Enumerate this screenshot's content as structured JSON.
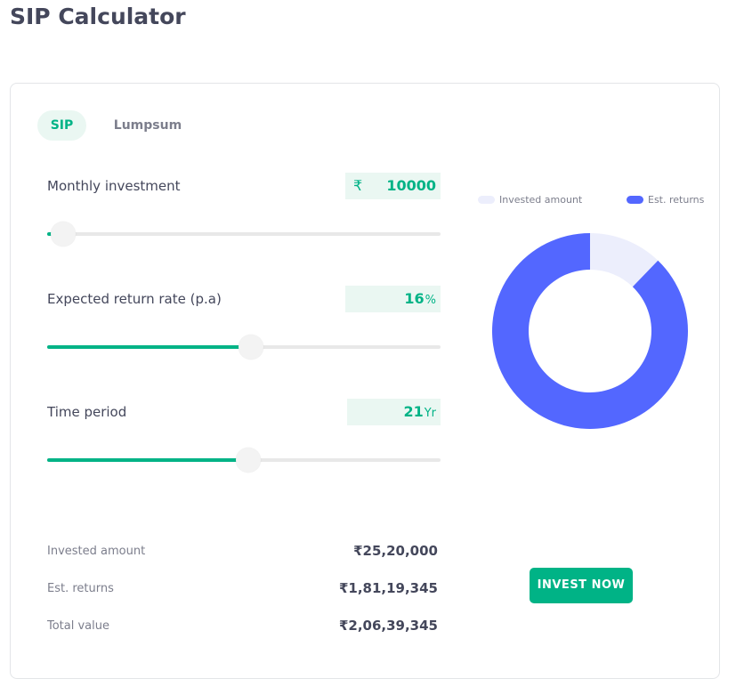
{
  "page": {
    "title": "SIP Calculator"
  },
  "tabs": [
    {
      "label": "SIP",
      "active": true
    },
    {
      "label": "Lumpsum",
      "active": false
    }
  ],
  "inputs": {
    "monthly_investment": {
      "label": "Monthly investment",
      "currency": "₹",
      "value": "10000",
      "slider_fraction": 0.04
    },
    "return_rate": {
      "label": "Expected return rate (p.a)",
      "value": "16",
      "unit": "%",
      "slider_fraction": 0.517
    },
    "time_period": {
      "label": "Time period",
      "value": "21",
      "unit": "Yr",
      "slider_fraction": 0.512
    }
  },
  "legend": {
    "invested": "Invested amount",
    "returns": "Est. returns"
  },
  "chart": {
    "invested_share": 0.122,
    "returns_share": 0.878,
    "colors": {
      "invested": "#eceefc",
      "returns": "#5367ff"
    }
  },
  "summary": {
    "invested_label": "Invested amount",
    "invested_value": "₹25,20,000",
    "returns_label": "Est. returns",
    "returns_value": "₹1,81,19,345",
    "total_label": "Total value",
    "total_value": "₹2,06,39,345"
  },
  "cta": {
    "label": "INVEST NOW"
  },
  "colors": {
    "accent": "#00b386",
    "accent_light": "#eaf7f2",
    "text": "#44475b",
    "muted": "#7c7e8c"
  }
}
